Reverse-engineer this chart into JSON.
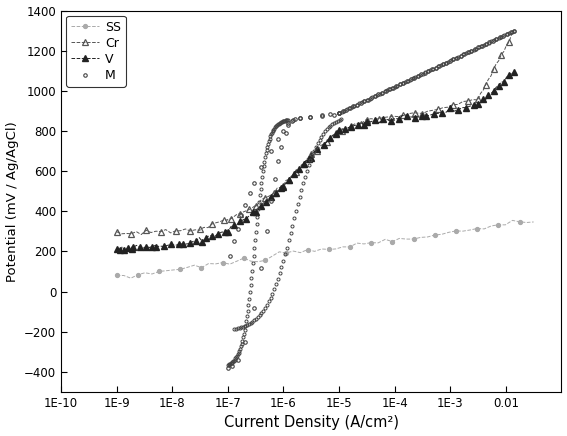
{
  "xlabel": "Current Density (A/cm²)",
  "ylabel": "Potential (mV / Ag/AgCl)",
  "ylim": [
    -500,
    1400
  ],
  "yticks": [
    -400,
    -200,
    0,
    200,
    400,
    600,
    800,
    1000,
    1200,
    1400
  ],
  "background_color": "#ffffff",
  "ss_color": "#aaaaaa",
  "cr_color": "#555555",
  "v_color": "#222222",
  "m_color": "#444444"
}
